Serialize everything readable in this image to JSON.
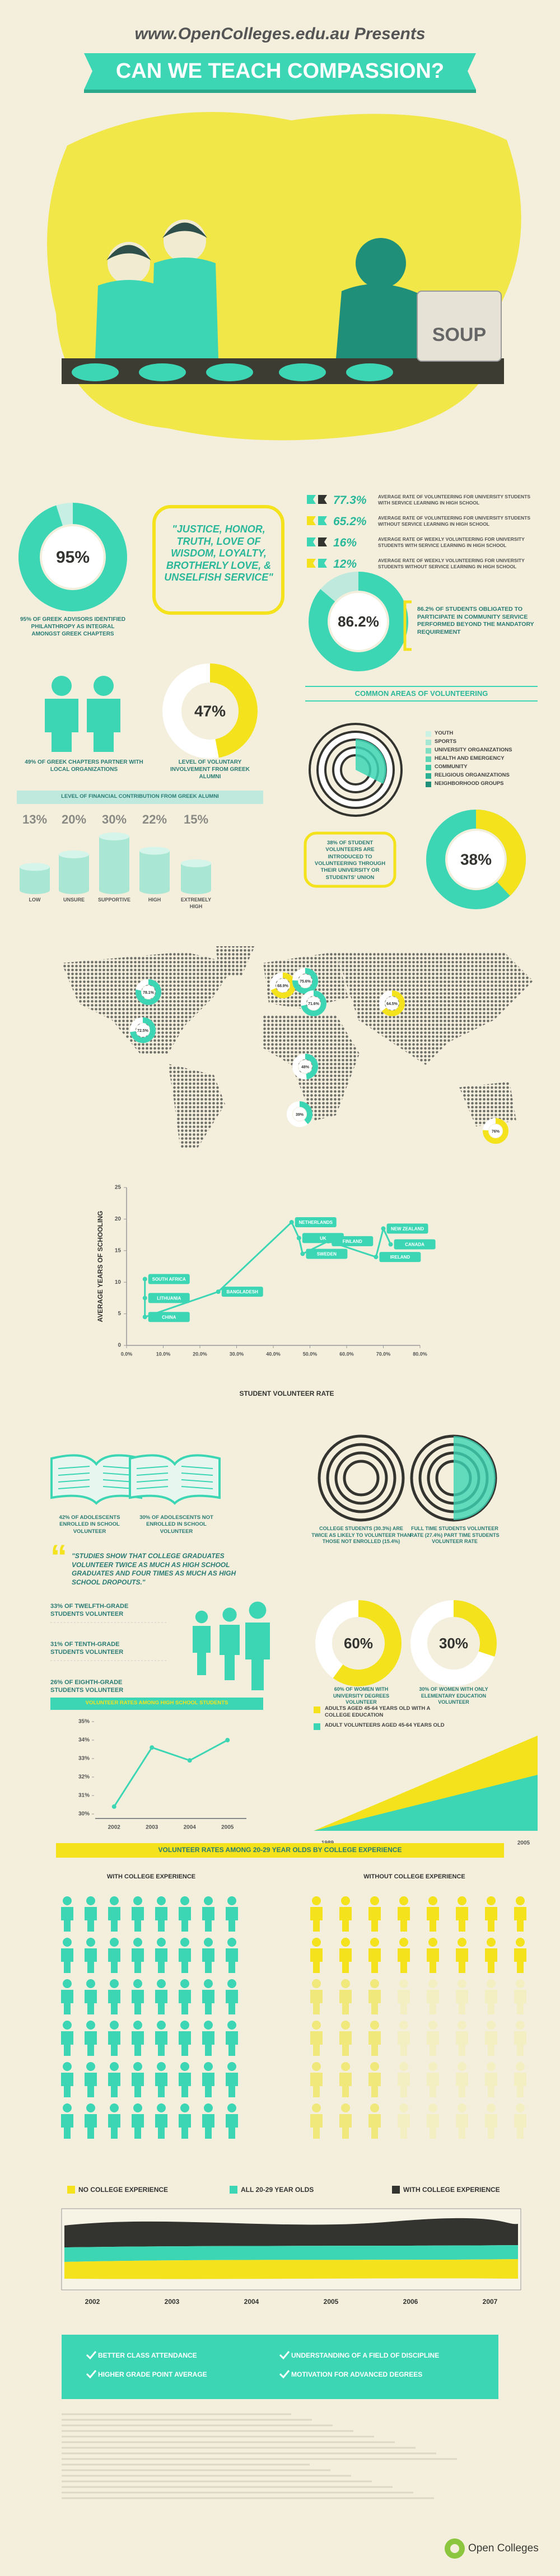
{
  "header": {
    "presents": "www.OpenColleges.edu.au Presents",
    "title": "CAN WE TEACH COMPASSION?"
  },
  "illustration": {
    "pot_label": "SOUP"
  },
  "greek_advisors": {
    "type": "donut",
    "value": 95,
    "label": "95%",
    "text": "95% OF GREEK ADVISORS IDENTIFIED PHILANTHROPY AS INTEGRAL AMONGST GREEK CHAPTERS"
  },
  "greek_values_quote": "\"JUSTICE, HONOR, TRUTH, LOVE OF WISDOM, LOYALTY, BROTHERLY LOVE, & UNSELFISH SERVICE\"",
  "service_learning": [
    {
      "rate": "77.3%",
      "text": "AVERAGE RATE OF VOLUNTEERING FOR UNIVERSITY STUDENTS WITH SERVICE LEARNING IN HIGH SCHOOL"
    },
    {
      "rate": "65.2%",
      "text": "AVERAGE RATE OF VOLUNTEERING FOR UNIVERSITY STUDENTS WITHOUT SERVICE LEARNING IN HIGH SCHOOL"
    },
    {
      "rate": "16%",
      "text": "AVERAGE RATE OF WEEKLY VOLUNTEERING FOR UNIVERSITY STUDENTS WITH SERVICE LEARNING IN HIGH SCHOOL"
    },
    {
      "rate": "12%",
      "text": "AVERAGE RATE OF WEEKLY VOLUNTEERING FOR UNIVERSITY STUDENTS WITHOUT SERVICE LEARNING IN HIGH SCHOOL"
    }
  ],
  "obligated_students": {
    "type": "donut",
    "value": 86.2,
    "label": "86.2%",
    "text": "86.2% OF STUDENTS OBLIGATED TO PARTICIPATE IN COMMUNITY SERVICE PERFORMED BEYOND THE MANDATORY REQUIREMENT"
  },
  "greek_chapters": {
    "text": "49% OF GREEK CHAPTERS PARTNER WITH LOCAL ORGANIZATIONS"
  },
  "alumni_involvement": {
    "type": "donut",
    "value": 47,
    "label": "47%",
    "text": "LEVEL OF VOLUNTARY INVOLVEMENT FROM GREEK ALUMNI"
  },
  "volunteering_areas": {
    "title": "COMMON AREAS OF VOLUNTEERING",
    "items": [
      "YOUTH",
      "SPORTS",
      "UNIVERSITY ORGANIZATIONS",
      "HEALTH AND EMERGENCY",
      "COMMUNITY",
      "RELIGIOUS ORGANIZATIONS",
      "NEIGHBORHOOD GROUPS"
    ]
  },
  "financial_contribution": {
    "type": "bar",
    "title": "LEVEL OF FINANCIAL CONTRIBUTION FROM GREEK ALUMNI",
    "categories": [
      "LOW",
      "UNSURE",
      "SUPPORTIVE",
      "HIGH",
      "EXTREMELY HIGH"
    ],
    "values": [
      13,
      20,
      30,
      22,
      15
    ],
    "value_labels": [
      "13%",
      "20%",
      "30%",
      "22%",
      "15%"
    ]
  },
  "student_union": {
    "type": "donut",
    "value": 38,
    "label": "38%",
    "text": "38% OF STUDENT VOLUNTEERS ARE INTRODUCED TO VOLUNTEERING THROUGH THEIR UNIVERSITY OR STUDENTS' UNION"
  },
  "world_map": {
    "markers": [
      {
        "value": 78.1,
        "label": "78.1%"
      },
      {
        "value": 72.5,
        "label": "72.5%"
      },
      {
        "value": 68.9,
        "label": "68.9%"
      },
      {
        "value": 75.6,
        "label": "75.6%"
      },
      {
        "value": 71.6,
        "label": "71.6%"
      },
      {
        "value": 64.5,
        "label": "64.5%"
      },
      {
        "value": 48,
        "label": "48%"
      },
      {
        "value": 39,
        "label": "39%"
      },
      {
        "value": 76,
        "label": "76%"
      }
    ]
  },
  "schooling_vs_volunteering": {
    "type": "line",
    "xlabel": "STUDENT VOLUNTEER RATE",
    "ylabel": "AVERAGE YEARS OF SCHOOLING",
    "point_labels": [
      "SOUTH AFRICA",
      "LITHUANIA",
      "CHINA",
      "BANGLADESH",
      "NETHERLANDS",
      "UK",
      "SWEDEN",
      "FINLAND",
      "IRELAND",
      "NEW ZEALAND",
      "CANADA"
    ],
    "x": [
      5,
      5,
      5,
      25,
      45,
      47,
      48,
      55,
      68,
      70,
      72
    ],
    "values": [
      10.5,
      7.5,
      4.5,
      8.5,
      19.5,
      17,
      14.5,
      16.5,
      14,
      18.5,
      16
    ],
    "xlim": [
      0,
      80
    ],
    "ylim": [
      0,
      25
    ],
    "xticks": [
      {
        "value": 0,
        "label": "0.0%"
      },
      {
        "value": 10,
        "label": "10.0%"
      },
      {
        "value": 20,
        "label": "20.0%"
      },
      {
        "value": 30,
        "label": "30.0%"
      },
      {
        "value": 40,
        "label": "40.0%"
      },
      {
        "value": 50,
        "label": "50.0%"
      },
      {
        "value": 60,
        "label": "60.0%"
      },
      {
        "value": 70,
        "label": "70.0%"
      },
      {
        "value": 80,
        "label": "80.0%"
      }
    ],
    "yticks": [
      0,
      5,
      10,
      15,
      20,
      25
    ],
    "color": "#3dd6b5"
  },
  "adolescents": {
    "enrolled": "42% OF ADOLESCENTS ENROLLED IN SCHOOL VOLUNTEER",
    "not_enrolled": "30% OF ADOLESCENTS NOT ENROLLED IN SCHOOL VOLUNTEER"
  },
  "college_students": "COLLEGE STUDENTS (30.3%) ARE TWICE AS LIKELY TO VOLUNTEER THAN THOSE NOT ENROLLED (15.4%)",
  "full_time": "FULL TIME STUDENTS VOLUNTEER RATE (27.4%) PART TIME STUDENTS VOLUNTEER RATE",
  "graduates_quote": "\"STUDIES SHOW THAT COLLEGE GRADUATES VOLUNTEER TWICE AS MUCH AS HIGH SCHOOL GRADUATES AND FOUR TIMES AS MUCH AS HIGH SCHOOL DROPOUTS.\"",
  "grades": [
    "33% OF TWELFTH-GRADE STUDENTS VOLUNTEER",
    "31% OF TENTH-GRADE STUDENTS VOLUNTEER",
    "26% OF EIGHTH-GRADE STUDENTS VOLUNTEER"
  ],
  "women_university": {
    "type": "donut",
    "value": 60,
    "label": "60%",
    "text": "60% OF WOMEN WITH UNIVERSITY DEGREES VOLUNTEER"
  },
  "women_elementary": {
    "type": "donut",
    "value": 30,
    "label": "30%",
    "text": "30% OF WOMEN WITH ONLY ELEMENTARY EDUCATION VOLUNTEER"
  },
  "high_school_rates": {
    "type": "line",
    "title": "VOLUNTEER RATES AMONG HIGH SCHOOL STUDENTS",
    "categories": [
      "2002",
      "2003",
      "2004",
      "2005"
    ],
    "values": [
      30.4,
      33.6,
      32.9,
      34
    ],
    "ylim": [
      30,
      35
    ],
    "yticks": [
      {
        "value": 30,
        "label": "30%"
      },
      {
        "value": 31,
        "label": "31%"
      },
      {
        "value": 32,
        "label": "32%"
      },
      {
        "value": 33,
        "label": "33%"
      },
      {
        "value": 34,
        "label": "34%"
      },
      {
        "value": 35,
        "label": "35%"
      }
    ],
    "color": "#3dd6b5"
  },
  "adult_volunteers": {
    "legend": [
      "ADULTS AGED 45-64 YEARS OLD WITH A COLLEGE EDUCATION",
      "ADULT VOLUNTEERS AGED 45-64 YEARS OLD"
    ],
    "years": [
      "1989",
      "2005"
    ]
  },
  "college_experience": {
    "title": "VOLUNTEER RATES AMONG 20-29 YEAR OLDS BY COLLEGE EXPERIENCE",
    "with": "WITH COLLEGE EXPERIENCE",
    "without": "WITHOUT COLLEGE EXPERIENCE",
    "legend": [
      "NO COLLEGE EXPERIENCE",
      "ALL 20-29 YEAR OLDS",
      "WITH COLLEGE EXPERIENCE"
    ],
    "years": [
      "2002",
      "2003",
      "2004",
      "2005",
      "2006",
      "2007"
    ]
  },
  "benefits": [
    "BETTER CLASS ATTENDANCE",
    "HIGHER GRADE POINT AVERAGE",
    "UNDERSTANDING OF A FIELD OF DISCIPLINE",
    "MOTIVATION FOR ADVANCED DEGREES"
  ],
  "footer": {
    "logo": "Open Colleges"
  }
}
